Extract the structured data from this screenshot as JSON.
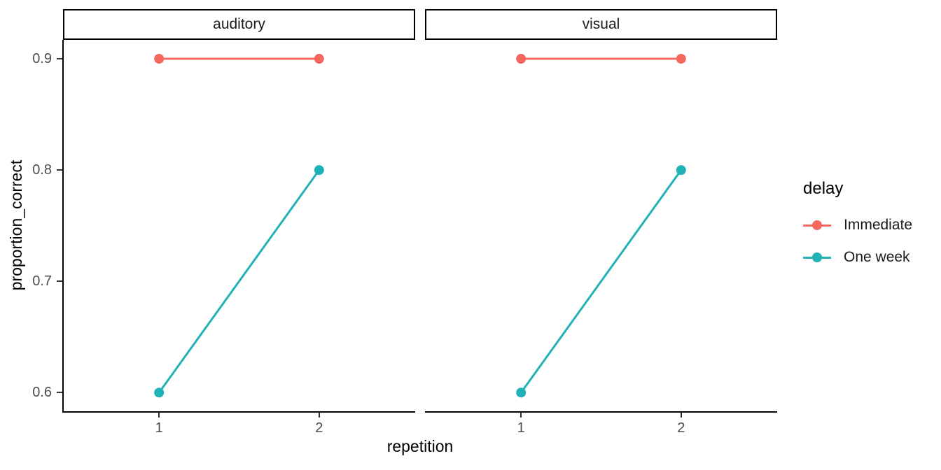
{
  "chart_data": {
    "type": "line",
    "title": "",
    "xlabel": "repetition",
    "ylabel": "proportion_correct",
    "grid": false,
    "xlim": [
      0.4,
      2.6
    ],
    "ylim": [
      0.582,
      0.917
    ],
    "xticks": [
      {
        "value": 1,
        "label": "1"
      },
      {
        "value": 2,
        "label": "2"
      }
    ],
    "yticks": [
      {
        "value": 0.6,
        "label": "0.6"
      },
      {
        "value": 0.7,
        "label": "0.7"
      },
      {
        "value": 0.8,
        "label": "0.8"
      },
      {
        "value": 0.9,
        "label": "0.9"
      }
    ],
    "facets": [
      {
        "label": "auditory",
        "series": [
          {
            "name": "Immediate",
            "color": "#F4685F",
            "x": [
              1,
              2
            ],
            "y": [
              0.9,
              0.9
            ]
          },
          {
            "name": "One week",
            "color": "#20B2B8",
            "x": [
              1,
              2
            ],
            "y": [
              0.6,
              0.8
            ]
          }
        ]
      },
      {
        "label": "visual",
        "series": [
          {
            "name": "Immediate",
            "color": "#F4685F",
            "x": [
              1,
              2
            ],
            "y": [
              0.9,
              0.9
            ]
          },
          {
            "name": "One week",
            "color": "#20B2B8",
            "x": [
              1,
              2
            ],
            "y": [
              0.6,
              0.8
            ]
          }
        ]
      }
    ],
    "legend": {
      "title": "delay",
      "position": "right",
      "entries": [
        {
          "label": "Immediate",
          "color": "#F4685F"
        },
        {
          "label": "One week",
          "color": "#20B2B8"
        }
      ]
    }
  }
}
